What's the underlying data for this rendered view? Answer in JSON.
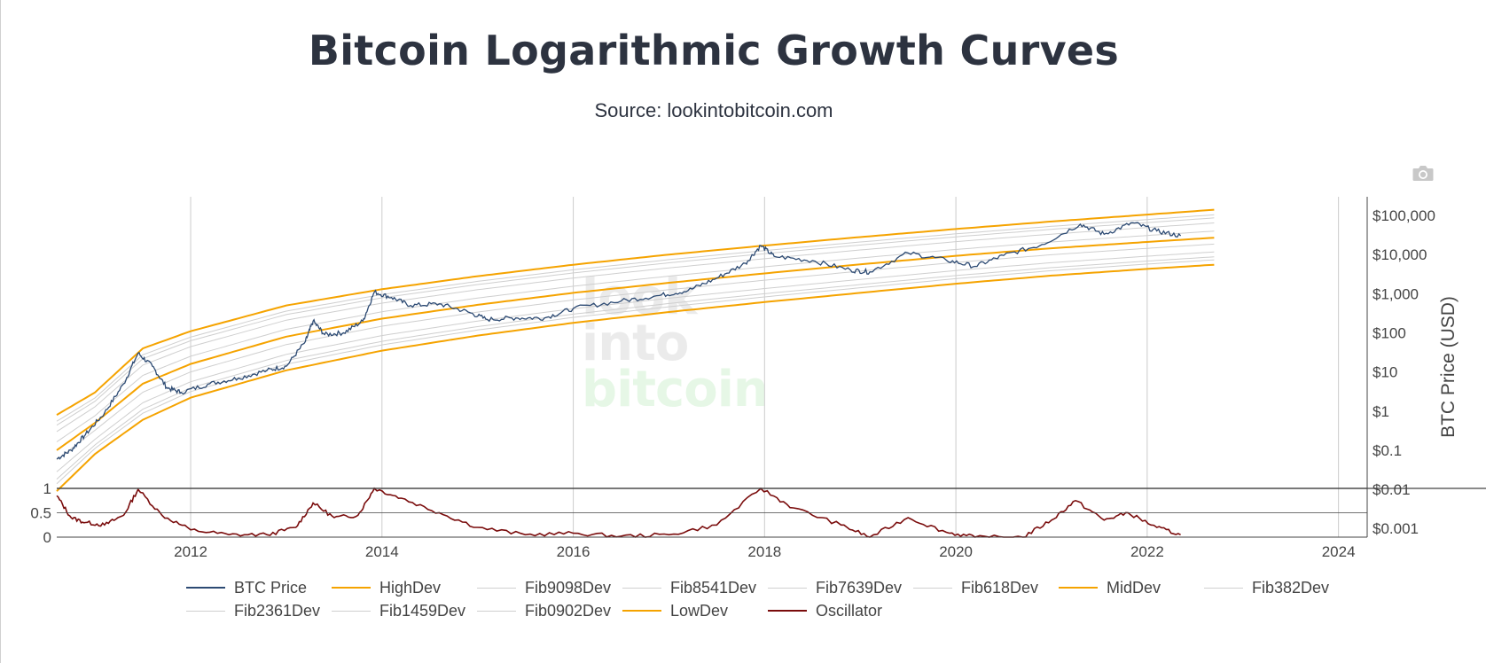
{
  "page": {
    "title": "Bitcoin Logarithmic Growth Curves",
    "subtitle": "Source: lookintobitcoin.com",
    "camera_icon": "camera-icon",
    "watermark": [
      "look",
      "into",
      "bitcoin"
    ]
  },
  "chart_data": {
    "type": "line",
    "title": "Bitcoin Logarithmic Growth Curves",
    "subtitle": "Source: lookintobitcoin.com",
    "x_axis": {
      "ticks": [
        "2012",
        "2014",
        "2016",
        "2018",
        "2020",
        "2022",
        "2024"
      ],
      "range": [
        2010.6,
        2024.3
      ]
    },
    "y_axis_price": {
      "title": "BTC Price (USD)",
      "scale": "log",
      "ticks": [
        "$0.001",
        "$0.01",
        "$0.1",
        "$1",
        "$10",
        "$100",
        "$1,000",
        "$10,000",
        "$100,000"
      ],
      "range": [
        0.0006,
        300000
      ]
    },
    "y_axis_oscillator": {
      "ticks": [
        "0",
        "0.5",
        "1"
      ],
      "range": [
        0,
        1
      ]
    },
    "colors": {
      "btc": "#2c4a73",
      "dev": "#f5a300",
      "fib": "#cfcfcf",
      "osc": "#7a0c0c",
      "grid": "#cccccc"
    },
    "bands": {
      "HighDev": [
        [
          2010.6,
          0.8
        ],
        [
          2011.0,
          3
        ],
        [
          2011.5,
          40
        ],
        [
          2012,
          110
        ],
        [
          2013,
          500
        ],
        [
          2014,
          1300
        ],
        [
          2015,
          2800
        ],
        [
          2016,
          5500
        ],
        [
          2017,
          10000
        ],
        [
          2018,
          17000
        ],
        [
          2019,
          28000
        ],
        [
          2020,
          45000
        ],
        [
          2021,
          70000
        ],
        [
          2022,
          105000
        ],
        [
          2022.7,
          140000
        ]
      ],
      "MidDev": [
        [
          2010.6,
          0.1
        ],
        [
          2011.0,
          0.5
        ],
        [
          2011.5,
          5
        ],
        [
          2012,
          16
        ],
        [
          2013,
          80
        ],
        [
          2014,
          230
        ],
        [
          2015,
          520
        ],
        [
          2016,
          1050
        ],
        [
          2017,
          1900
        ],
        [
          2018,
          3300
        ],
        [
          2019,
          5600
        ],
        [
          2020,
          9300
        ],
        [
          2021,
          14500
        ],
        [
          2022,
          21000
        ],
        [
          2022.7,
          27000
        ]
      ],
      "LowDev": [
        [
          2010.6,
          0.009
        ],
        [
          2011.0,
          0.08
        ],
        [
          2011.5,
          0.6
        ],
        [
          2012,
          2.2
        ],
        [
          2013,
          11
        ],
        [
          2014,
          35
        ],
        [
          2015,
          85
        ],
        [
          2016,
          180
        ],
        [
          2017,
          340
        ],
        [
          2018,
          610
        ],
        [
          2019,
          1050
        ],
        [
          2020,
          1800
        ],
        [
          2021,
          2900
        ],
        [
          2022,
          4300
        ],
        [
          2022.7,
          5500
        ]
      ]
    },
    "series": [
      {
        "name": "BTC Price",
        "values": [
          [
            2010.6,
            0.06
          ],
          [
            2010.75,
            0.1
          ],
          [
            2010.9,
            0.25
          ],
          [
            2011.1,
            0.9
          ],
          [
            2011.3,
            5
          ],
          [
            2011.45,
            30
          ],
          [
            2011.6,
            14
          ],
          [
            2011.75,
            4
          ],
          [
            2011.9,
            3
          ],
          [
            2012.2,
            5
          ],
          [
            2012.5,
            7
          ],
          [
            2012.8,
            11
          ],
          [
            2013.0,
            14
          ],
          [
            2013.2,
            60
          ],
          [
            2013.28,
            200
          ],
          [
            2013.4,
            90
          ],
          [
            2013.6,
            100
          ],
          [
            2013.8,
            200
          ],
          [
            2013.92,
            1100
          ],
          [
            2014.1,
            800
          ],
          [
            2014.3,
            500
          ],
          [
            2014.6,
            550
          ],
          [
            2014.9,
            340
          ],
          [
            2015.1,
            220
          ],
          [
            2015.4,
            240
          ],
          [
            2015.7,
            240
          ],
          [
            2016.0,
            420
          ],
          [
            2016.5,
            650
          ],
          [
            2016.9,
            900
          ],
          [
            2017.2,
            1200
          ],
          [
            2017.5,
            2500
          ],
          [
            2017.8,
            6000
          ],
          [
            2017.96,
            17000
          ],
          [
            2018.1,
            9000
          ],
          [
            2018.5,
            7000
          ],
          [
            2018.9,
            4000
          ],
          [
            2019.1,
            3600
          ],
          [
            2019.5,
            11000
          ],
          [
            2019.9,
            7200
          ],
          [
            2020.2,
            5000
          ],
          [
            2020.5,
            9500
          ],
          [
            2020.9,
            18000
          ],
          [
            2021.3,
            60000
          ],
          [
            2021.55,
            33000
          ],
          [
            2021.85,
            65000
          ],
          [
            2022.1,
            40000
          ],
          [
            2022.35,
            30000
          ]
        ]
      },
      {
        "name": "HighDev",
        "color": "#f5a300"
      },
      {
        "name": "Fib9098Dev",
        "color": "#cfcfcf"
      },
      {
        "name": "Fib8541Dev",
        "color": "#cfcfcf"
      },
      {
        "name": "Fib7639Dev",
        "color": "#cfcfcf"
      },
      {
        "name": "Fib618Dev",
        "color": "#cfcfcf"
      },
      {
        "name": "MidDev",
        "color": "#f5a300"
      },
      {
        "name": "Fib382Dev",
        "color": "#cfcfcf"
      },
      {
        "name": "Fib2361Dev",
        "color": "#cfcfcf"
      },
      {
        "name": "Fib1459Dev",
        "color": "#cfcfcf"
      },
      {
        "name": "Fib0902Dev",
        "color": "#cfcfcf"
      },
      {
        "name": "LowDev",
        "color": "#f5a300"
      },
      {
        "name": "Oscillator",
        "values": [
          [
            2010.6,
            0.85
          ],
          [
            2010.75,
            0.4
          ],
          [
            2010.9,
            0.3
          ],
          [
            2011.1,
            0.25
          ],
          [
            2011.3,
            0.45
          ],
          [
            2011.45,
            0.98
          ],
          [
            2011.7,
            0.45
          ],
          [
            2012.0,
            0.15
          ],
          [
            2012.4,
            0.05
          ],
          [
            2012.8,
            0.05
          ],
          [
            2013.1,
            0.2
          ],
          [
            2013.28,
            0.7
          ],
          [
            2013.5,
            0.4
          ],
          [
            2013.75,
            0.45
          ],
          [
            2013.92,
            1.0
          ],
          [
            2014.2,
            0.8
          ],
          [
            2014.6,
            0.5
          ],
          [
            2015.0,
            0.2
          ],
          [
            2015.5,
            0.05
          ],
          [
            2016.0,
            0.08
          ],
          [
            2016.5,
            0.02
          ],
          [
            2017.0,
            0.05
          ],
          [
            2017.5,
            0.25
          ],
          [
            2017.96,
            1.0
          ],
          [
            2018.3,
            0.6
          ],
          [
            2018.8,
            0.25
          ],
          [
            2019.1,
            0.0
          ],
          [
            2019.5,
            0.4
          ],
          [
            2019.9,
            0.1
          ],
          [
            2020.2,
            0.0
          ],
          [
            2020.7,
            0.0
          ],
          [
            2021.0,
            0.35
          ],
          [
            2021.25,
            0.75
          ],
          [
            2021.55,
            0.35
          ],
          [
            2021.8,
            0.5
          ],
          [
            2022.1,
            0.2
          ],
          [
            2022.35,
            0.05
          ]
        ]
      }
    ],
    "legend": [
      {
        "name": "BTC Price",
        "color": "#2c4a73"
      },
      {
        "name": "HighDev",
        "color": "#f5a300"
      },
      {
        "name": "Fib9098Dev",
        "color": "#cfcfcf"
      },
      {
        "name": "Fib8541Dev",
        "color": "#cfcfcf"
      },
      {
        "name": "Fib7639Dev",
        "color": "#cfcfcf"
      },
      {
        "name": "Fib618Dev",
        "color": "#cfcfcf"
      },
      {
        "name": "MidDev",
        "color": "#f5a300"
      },
      {
        "name": "Fib382Dev",
        "color": "#cfcfcf"
      },
      {
        "name": "Fib2361Dev",
        "color": "#cfcfcf"
      },
      {
        "name": "Fib1459Dev",
        "color": "#cfcfcf"
      },
      {
        "name": "Fib0902Dev",
        "color": "#cfcfcf"
      },
      {
        "name": "LowDev",
        "color": "#f5a300"
      },
      {
        "name": "Oscillator",
        "color": "#7a0c0c"
      }
    ]
  }
}
